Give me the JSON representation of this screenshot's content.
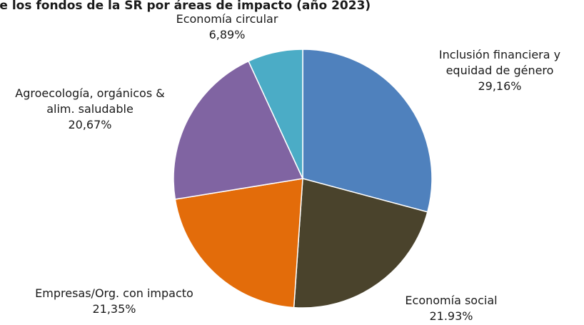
{
  "chart_data": {
    "type": "pie",
    "title": "...e los fondos de la SR por áreas de impacto (año 2023)",
    "slices": [
      {
        "label_lines": [
          "Inclusión financiera y",
          "equidad de género"
        ],
        "value_label": "29,16%",
        "value": 29.16,
        "color": "#4f81bd"
      },
      {
        "label_lines": [
          "Economía social"
        ],
        "value_label": "21.93%",
        "value": 21.93,
        "color": "#4a432c"
      },
      {
        "label_lines": [
          "Empresas/Org. con impacto"
        ],
        "value_label": "21,35%",
        "value": 21.35,
        "color": "#e36c0a"
      },
      {
        "label_lines": [
          "Agroecología, orgánicos &",
          "alim. saludable"
        ],
        "value_label": "20,67%",
        "value": 20.67,
        "color": "#8064a2"
      },
      {
        "label_lines": [
          "Economía circular"
        ],
        "value_label": "6,89%",
        "value": 6.89,
        "color": "#4bacc6"
      }
    ],
    "start_angle_deg": 0,
    "direction": "clockwise",
    "legend": "none"
  }
}
